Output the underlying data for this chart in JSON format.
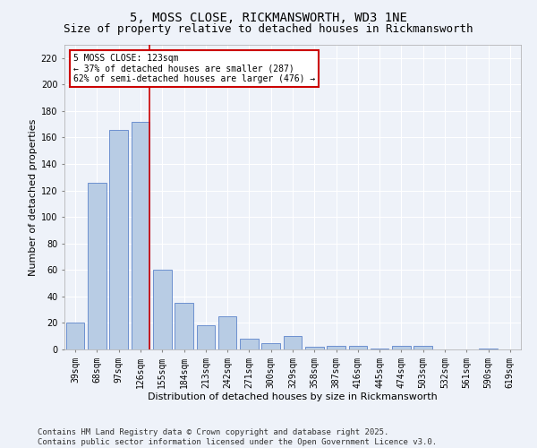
{
  "title1": "5, MOSS CLOSE, RICKMANSWORTH, WD3 1NE",
  "title2": "Size of property relative to detached houses in Rickmansworth",
  "xlabel": "Distribution of detached houses by size in Rickmansworth",
  "ylabel": "Number of detached properties",
  "categories": [
    "39sqm",
    "68sqm",
    "97sqm",
    "126sqm",
    "155sqm",
    "184sqm",
    "213sqm",
    "242sqm",
    "271sqm",
    "300sqm",
    "329sqm",
    "358sqm",
    "387sqm",
    "416sqm",
    "445sqm",
    "474sqm",
    "503sqm",
    "532sqm",
    "561sqm",
    "590sqm",
    "619sqm"
  ],
  "values": [
    20,
    126,
    166,
    172,
    60,
    35,
    18,
    25,
    8,
    5,
    10,
    2,
    3,
    3,
    1,
    3,
    3,
    0,
    0,
    1,
    0
  ],
  "bar_color": "#b8cce4",
  "bar_edge_color": "#4472c4",
  "vline_x_index": 3,
  "vline_color": "#cc0000",
  "annotation_line1": "5 MOSS CLOSE: 123sqm",
  "annotation_line2": "← 37% of detached houses are smaller (287)",
  "annotation_line3": "62% of semi-detached houses are larger (476) →",
  "annotation_box_color": "#ffffff",
  "annotation_box_edge": "#cc0000",
  "ylim": [
    0,
    230
  ],
  "yticks": [
    0,
    20,
    40,
    60,
    80,
    100,
    120,
    140,
    160,
    180,
    200,
    220
  ],
  "footer": "Contains HM Land Registry data © Crown copyright and database right 2025.\nContains public sector information licensed under the Open Government Licence v3.0.",
  "bg_color": "#eef2f9",
  "plot_bg_color": "#eef2f9",
  "grid_color": "#ffffff",
  "title_fontsize": 10,
  "subtitle_fontsize": 9,
  "axis_label_fontsize": 8,
  "tick_fontsize": 7,
  "footer_fontsize": 6.5
}
